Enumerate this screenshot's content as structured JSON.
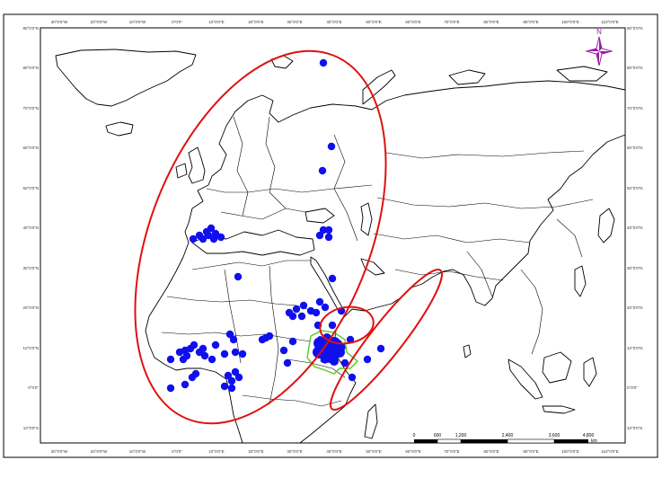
{
  "map": {
    "north_arrow_label": "N",
    "colors": {
      "land_stroke": "#000000",
      "occurrence_point": "#1010ee",
      "cluster_ellipse": "#e01010",
      "study_area": "#55cc22",
      "north_arrow": "#9a1aa8"
    },
    "axis_top": [
      "30°0'0\"W",
      "20°0'0\"W",
      "10°0'0\"W",
      "0°0'0\"",
      "10°0'0\"E",
      "20°0'0\"E",
      "30°0'0\"E",
      "40°0'0\"E",
      "50°0'0\"E",
      "60°0'0\"E",
      "70°0'0\"E",
      "80°0'0\"E",
      "90°0'0\"E",
      "100°0'0\"E",
      "110°0'0\"E"
    ],
    "axis_bottom": [
      "30°0'0\"W",
      "20°0'0\"W",
      "10°0'0\"W",
      "0°0'0\"",
      "10°0'0\"E",
      "20°0'0\"E",
      "30°0'0\"E",
      "40°0'0\"E",
      "50°0'0\"E",
      "60°0'0\"E",
      "70°0'0\"E",
      "80°0'0\"E",
      "90°0'0\"E",
      "100°0'0\"E",
      "110°0'0\"E"
    ],
    "axis_left": [
      "90°0'0\"N",
      "80°0'0\"N",
      "70°0'0\"N",
      "60°0'0\"N",
      "50°0'0\"N",
      "40°0'0\"N",
      "30°0'0\"N",
      "20°0'0\"N",
      "10°0'0\"N",
      "0°0'0\"",
      "10°0'0\"S"
    ],
    "axis_right": [
      "90°0'0\"N",
      "80°0'0\"N",
      "70°0'0\"N",
      "60°0'0\"N",
      "50°0'0\"N",
      "40°0'0\"N",
      "30°0'0\"N",
      "20°0'0\"N",
      "10°0'0\"N",
      "0°0'0\"",
      "10°0'0\"S"
    ],
    "scale_bar": {
      "labels": [
        "0",
        "600",
        "1,200",
        "2,400",
        "3,600",
        "4,800"
      ],
      "unit": "km"
    }
  }
}
